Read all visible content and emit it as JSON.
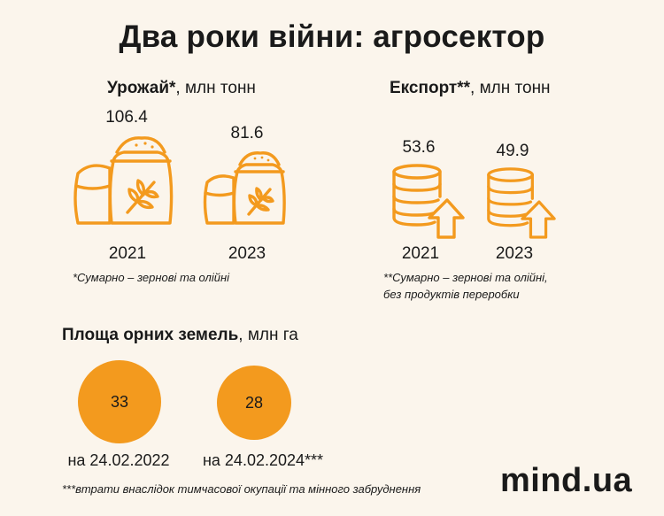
{
  "title": "Два роки війни: агросектор",
  "harvest": {
    "title_bold": "Урожай*",
    "title_unit": ", млн тонн",
    "note": "*Сумарно – зернові та олійні"
  },
  "export": {
    "title_bold": "Експорт**",
    "title_unit": ", млн тонн",
    "note_line1": "**Сумарно – зернові та олійні,",
    "note_line2": "без продуктів переробки"
  },
  "land": {
    "title_bold": "Площа орних земель",
    "title_unit": ", млн га"
  },
  "footnote": "***втрати внаслідок тимчасової окупації та мінного забруднення",
  "brand": "mind.ua",
  "colors": {
    "accent": "#F39A1E",
    "background": "#FBF5EC",
    "text": "#1a1a1a"
  },
  "chart_data": [
    {
      "type": "pictograph",
      "title": "Урожай*, млн тонн",
      "icon": "grain-sacks-icon",
      "categories": [
        "2021",
        "2023"
      ],
      "values": [
        106.4,
        81.6
      ],
      "value_labels": [
        "106.4",
        "81.6"
      ]
    },
    {
      "type": "pictograph",
      "title": "Експорт**, млн тонн",
      "icon": "coin-stack-up-arrow-icon",
      "categories": [
        "2021",
        "2023"
      ],
      "values": [
        53.6,
        49.9
      ],
      "value_labels": [
        "53.6",
        "49.9"
      ]
    },
    {
      "type": "bubble",
      "title": "Площа орних земель, млн га",
      "categories": [
        "на 24.02.2022",
        "на 24.02.2024***"
      ],
      "values": [
        33,
        28
      ],
      "value_labels": [
        "33",
        "28"
      ]
    }
  ]
}
